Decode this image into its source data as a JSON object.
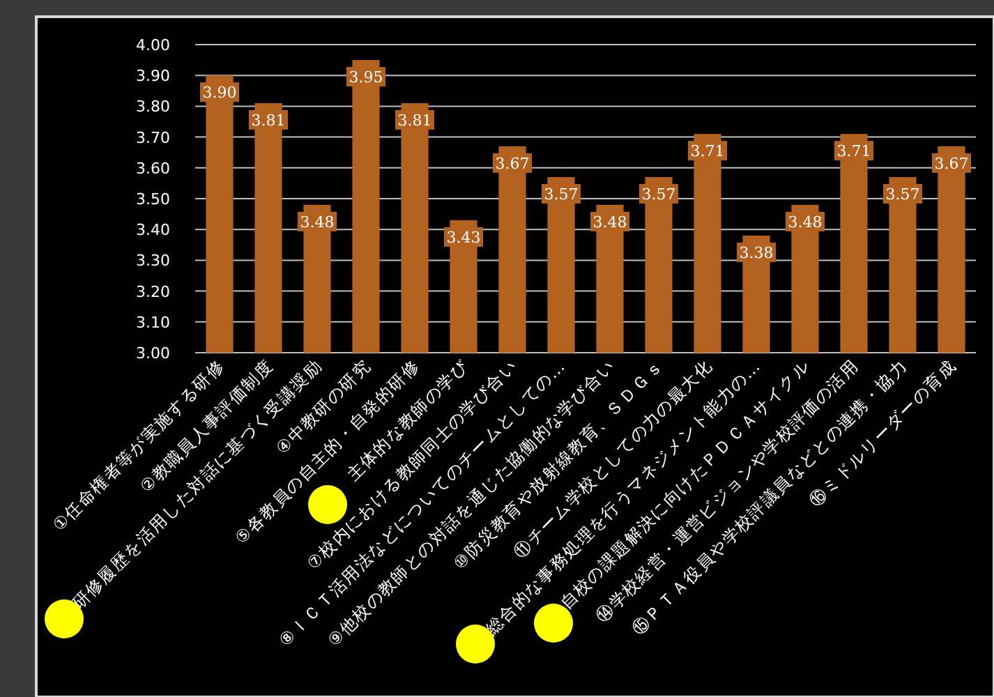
{
  "chart_data": {
    "type": "bar",
    "categories": [
      "①任命権者等が実施する研修",
      "②教職員人事評価制度",
      "研修履歴を活用した対話に基づく受講奨励",
      "④中教研の研究",
      "⑤各教員の自主的・自発的研修",
      "主体的な教師の学び",
      "⑦校内における教師同士の学び合い",
      "⑧ＩＣＴ活用法などについてのチームとしての…",
      "⑨他校の教師との対話を通じた協働的な学び合い",
      "⑩防災教育や放射線教育、ＳＤＧｓ",
      "⑪チーム学校としての力の最大化",
      "総合的な事務処理を行うマネジメント能力の…",
      "自校の課題解決に向けたＰＤＣＡサイクル",
      "⑭学校経営・運営ビジョンや学校評価の活用",
      "⑮ＰＴＡ役員や学校評議員などとの連携・協力",
      "⑯ミドルリーダーの育成"
    ],
    "values": [
      3.9,
      3.81,
      3.48,
      3.95,
      3.81,
      3.43,
      3.67,
      3.57,
      3.48,
      3.57,
      3.71,
      3.38,
      3.48,
      3.71,
      3.57,
      3.67
    ],
    "value_labels": [
      "3.90",
      "3.81",
      "3.48",
      "3.95",
      "3.81",
      "3.43",
      "3.67",
      "3.57",
      "3.48",
      "3.57",
      "3.71",
      "3.38",
      "3.48",
      "3.71",
      "3.57",
      "3.67"
    ],
    "color": "#b2611f",
    "ylim": [
      3.0,
      4.0
    ],
    "yticks": [
      {
        "value": 3.0,
        "label": "3.00"
      },
      {
        "value": 3.1,
        "label": "3.10"
      },
      {
        "value": 3.2,
        "label": "3.20"
      },
      {
        "value": 3.3,
        "label": "3.30"
      },
      {
        "value": 3.4,
        "label": "3.40"
      },
      {
        "value": 3.5,
        "label": "3.50"
      },
      {
        "value": 3.6,
        "label": "3.60"
      },
      {
        "value": 3.7,
        "label": "3.70"
      },
      {
        "value": 3.8,
        "label": "3.80"
      },
      {
        "value": 3.9,
        "label": "3.90"
      },
      {
        "value": 4.0,
        "label": "4.00"
      }
    ],
    "grid": "y"
  }
}
